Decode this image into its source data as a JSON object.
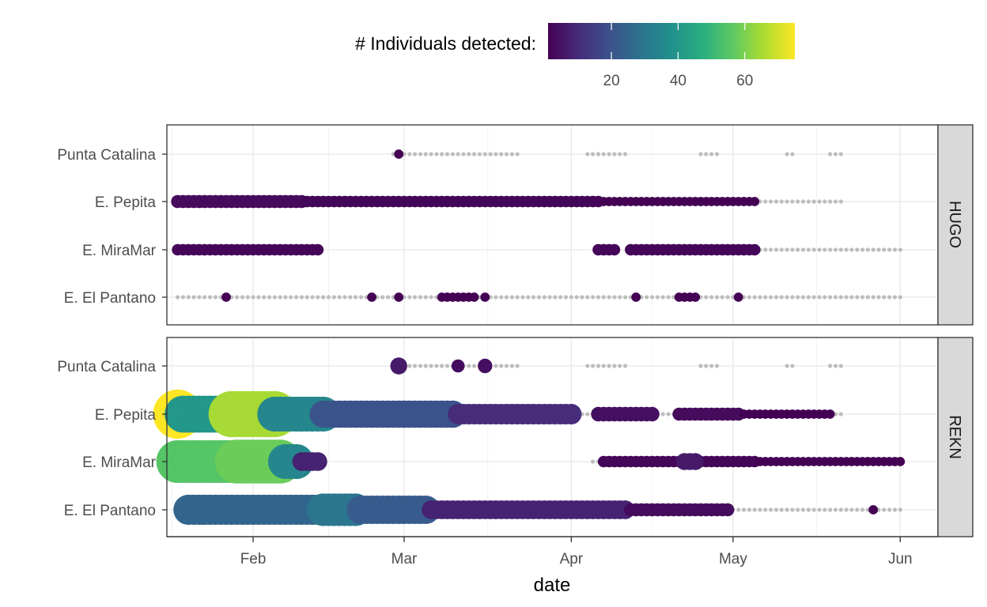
{
  "chart_data": {
    "type": "scatter",
    "xlabel": "date",
    "x_ticks": [
      "Feb",
      "Mar",
      "Apr",
      "May",
      "Jun"
    ],
    "x_tick_dates": [
      "2023-02-01",
      "2023-03-01",
      "2023-04-01",
      "2023-05-01",
      "2023-06-01"
    ],
    "xlim": [
      "2023-01-16",
      "2023-06-08"
    ],
    "grid": true,
    "legend": {
      "title": "# Individuals detected:",
      "position": "top",
      "type": "colorbar",
      "palette": "viridis",
      "range": [
        1,
        75
      ],
      "ticks": [
        "20",
        "40",
        "60"
      ],
      "tick_values": [
        20,
        40,
        60
      ],
      "no_detection_color": "#bebebe"
    },
    "facets": [
      {
        "label": "HUGO",
        "sites": [
          "Punta Catalina",
          "E. Pepita",
          "E. MiraMar",
          "E. El Pantano"
        ],
        "series": [
          {
            "site": "Punta Catalina",
            "segments": [
              {
                "from": "2023-02-27",
                "to": "2023-03-22",
                "n": 0
              },
              {
                "from": "2023-02-28",
                "to": "2023-02-28",
                "n": 1
              },
              {
                "from": "2023-04-04",
                "to": "2023-04-11",
                "n": 0
              },
              {
                "from": "2023-04-25",
                "to": "2023-04-28",
                "n": 0
              },
              {
                "from": "2023-05-11",
                "to": "2023-05-12",
                "n": 0
              },
              {
                "from": "2023-05-19",
                "to": "2023-05-21",
                "n": 0
              }
            ]
          },
          {
            "site": "E. Pepita",
            "segments": [
              {
                "from": "2023-01-18",
                "to": "2023-02-01",
                "n": 3
              },
              {
                "from": "2023-02-02",
                "to": "2023-02-10",
                "n": 3
              },
              {
                "from": "2023-02-11",
                "to": "2023-04-06",
                "n": 2
              },
              {
                "from": "2023-04-07",
                "to": "2023-04-22",
                "n": 1
              },
              {
                "from": "2023-04-23",
                "to": "2023-05-05",
                "n": 1
              },
              {
                "from": "2023-05-06",
                "to": "2023-05-21",
                "n": 0
              }
            ]
          },
          {
            "site": "E. MiraMar",
            "segments": [
              {
                "from": "2023-01-18",
                "to": "2023-02-01",
                "n": 2
              },
              {
                "from": "2023-02-02",
                "to": "2023-02-13",
                "n": 2
              },
              {
                "from": "2023-04-06",
                "to": "2023-04-09",
                "n": 2
              },
              {
                "from": "2023-04-12",
                "to": "2023-05-05",
                "n": 2
              },
              {
                "from": "2023-05-06",
                "to": "2023-06-01",
                "n": 0
              }
            ]
          },
          {
            "site": "E. El Pantano",
            "segments": [
              {
                "from": "2023-01-18",
                "to": "2023-06-01",
                "n": 0
              },
              {
                "from": "2023-01-27",
                "to": "2023-01-27",
                "n": 1
              },
              {
                "from": "2023-02-23",
                "to": "2023-02-23",
                "n": 1
              },
              {
                "from": "2023-02-28",
                "to": "2023-02-28",
                "n": 1
              },
              {
                "from": "2023-03-08",
                "to": "2023-03-14",
                "n": 1
              },
              {
                "from": "2023-03-16",
                "to": "2023-03-16",
                "n": 1
              },
              {
                "from": "2023-04-13",
                "to": "2023-04-13",
                "n": 1
              },
              {
                "from": "2023-04-21",
                "to": "2023-04-24",
                "n": 1
              },
              {
                "from": "2023-05-02",
                "to": "2023-05-02",
                "n": 1
              }
            ]
          }
        ]
      },
      {
        "label": "REKN",
        "sites": [
          "Punta Catalina",
          "E. Pepita",
          "E. MiraMar",
          "E. El Pantano"
        ],
        "series": [
          {
            "site": "Punta Catalina",
            "segments": [
              {
                "from": "2023-02-27",
                "to": "2023-03-22",
                "n": 0
              },
              {
                "from": "2023-02-28",
                "to": "2023-02-28",
                "n": 6
              },
              {
                "from": "2023-03-11",
                "to": "2023-03-11",
                "n": 3
              },
              {
                "from": "2023-03-16",
                "to": "2023-03-16",
                "n": 4
              },
              {
                "from": "2023-04-04",
                "to": "2023-04-11",
                "n": 0
              },
              {
                "from": "2023-04-25",
                "to": "2023-04-28",
                "n": 0
              },
              {
                "from": "2023-05-11",
                "to": "2023-05-12",
                "n": 0
              },
              {
                "from": "2023-05-19",
                "to": "2023-05-21",
                "n": 0
              }
            ]
          },
          {
            "site": "E. Pepita",
            "segments": [
              {
                "from": "2023-01-18",
                "to": "2023-01-18",
                "n": 75
              },
              {
                "from": "2023-01-19",
                "to": "2023-01-28",
                "n": 40
              },
              {
                "from": "2023-01-28",
                "to": "2023-02-05",
                "n": 65
              },
              {
                "from": "2023-02-05",
                "to": "2023-02-14",
                "n": 35
              },
              {
                "from": "2023-02-14",
                "to": "2023-03-10",
                "n": 20
              },
              {
                "from": "2023-03-11",
                "to": "2023-04-01",
                "n": 10
              },
              {
                "from": "2023-04-02",
                "to": "2023-04-05",
                "n": 0
              },
              {
                "from": "2023-04-06",
                "to": "2023-04-16",
                "n": 4
              },
              {
                "from": "2023-04-17",
                "to": "2023-04-20",
                "n": 0
              },
              {
                "from": "2023-04-21",
                "to": "2023-05-02",
                "n": 3
              },
              {
                "from": "2023-05-03",
                "to": "2023-05-19",
                "n": 1
              },
              {
                "from": "2023-05-20",
                "to": "2023-05-21",
                "n": 0
              }
            ]
          },
          {
            "site": "E. MiraMar",
            "segments": [
              {
                "from": "2023-01-18",
                "to": "2023-01-28",
                "n": 55
              },
              {
                "from": "2023-01-29",
                "to": "2023-02-06",
                "n": 58
              },
              {
                "from": "2023-02-07",
                "to": "2023-02-09",
                "n": 35
              },
              {
                "from": "2023-02-10",
                "to": "2023-02-13",
                "n": 8
              },
              {
                "from": "2023-04-05",
                "to": "2023-04-06",
                "n": 0
              },
              {
                "from": "2023-04-07",
                "to": "2023-05-05",
                "n": 2
              },
              {
                "from": "2023-04-22",
                "to": "2023-04-24",
                "n": 6
              },
              {
                "from": "2023-05-06",
                "to": "2023-06-01",
                "n": 1
              }
            ]
          },
          {
            "site": "E. El Pantano",
            "segments": [
              {
                "from": "2023-01-20",
                "to": "2023-02-13",
                "n": 25
              },
              {
                "from": "2023-02-14",
                "to": "2023-02-20",
                "n": 30
              },
              {
                "from": "2023-02-21",
                "to": "2023-03-05",
                "n": 22
              },
              {
                "from": "2023-03-06",
                "to": "2023-04-11",
                "n": 8
              },
              {
                "from": "2023-04-12",
                "to": "2023-04-30",
                "n": 3
              },
              {
                "from": "2023-05-01",
                "to": "2023-06-01",
                "n": 0
              },
              {
                "from": "2023-05-27",
                "to": "2023-05-27",
                "n": 1
              }
            ]
          }
        ]
      }
    ]
  }
}
